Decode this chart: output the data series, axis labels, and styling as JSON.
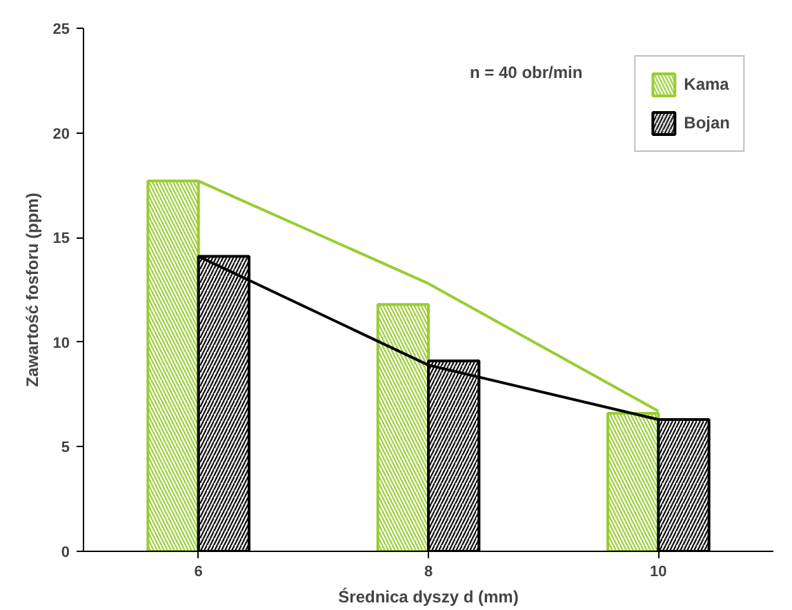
{
  "chart_data": {
    "type": "bar",
    "xlabel": "Średnica dyszy d (mm)",
    "ylabel": "Zawartość fosforu (ppm)",
    "categories": [
      "6",
      "8",
      "10"
    ],
    "series": [
      {
        "name": "Kama",
        "color": "#99cc33",
        "values": [
          17.7,
          11.8,
          6.6
        ]
      },
      {
        "name": "Bojan",
        "color": "#000000",
        "values": [
          14.1,
          9.1,
          6.3
        ]
      },
      {
        "type": "line",
        "color": "#99cc33",
        "values": [
          17.7,
          12.8,
          6.7
        ]
      },
      {
        "type": "line",
        "color": "#000000",
        "values": [
          14.1,
          8.9,
          6.3
        ]
      }
    ],
    "ylim": [
      0,
      25
    ],
    "yticks": [
      0,
      5,
      10,
      15,
      20,
      25
    ],
    "grid": false,
    "legend": "top right",
    "annotations": [
      "n = 40 obr/min"
    ]
  }
}
